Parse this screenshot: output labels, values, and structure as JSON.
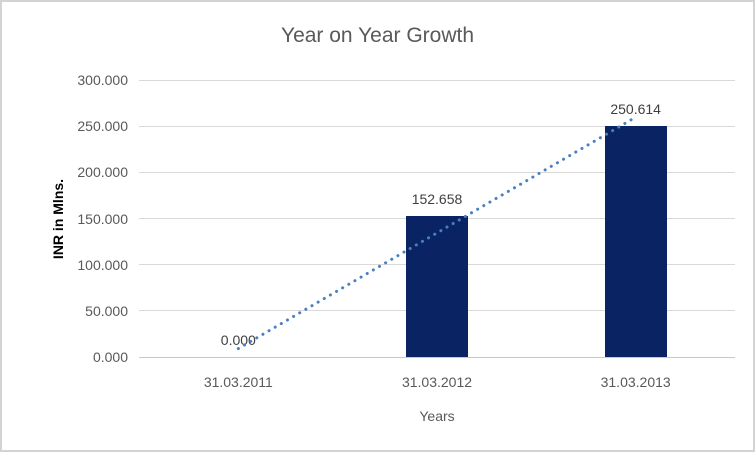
{
  "chart_data": {
    "type": "bar",
    "title": "Year on Year Growth",
    "xlabel": "Years",
    "ylabel": "INR in Mlns.",
    "categories": [
      "31.03.2011",
      "31.03.2012",
      "31.03.2013"
    ],
    "values": [
      0,
      152.658,
      250.614
    ],
    "data_labels": [
      "0.000",
      "152.658",
      "250.614"
    ],
    "y_tick_values": [
      0,
      50,
      100,
      150,
      200,
      250,
      300
    ],
    "y_tick_labels": [
      "0.000",
      "50.000",
      "100.000",
      "150.000",
      "200.000",
      "250.000",
      "300.000"
    ],
    "ylim": [
      0,
      300
    ],
    "grid": true,
    "legend": "none",
    "trendline": {
      "type": "linear",
      "style": "dotted"
    },
    "colors": {
      "bar": "#0a2463",
      "trendline": "#4a7fc1",
      "gridline": "#d9d9d9",
      "axis_line": "#c8c8c8",
      "title_text": "#595959",
      "tick_text": "#595959",
      "data_label_text": "#404040",
      "axis_title_text": "#000000",
      "frame_border": "#d3d3d3",
      "background": "#ffffff"
    }
  }
}
